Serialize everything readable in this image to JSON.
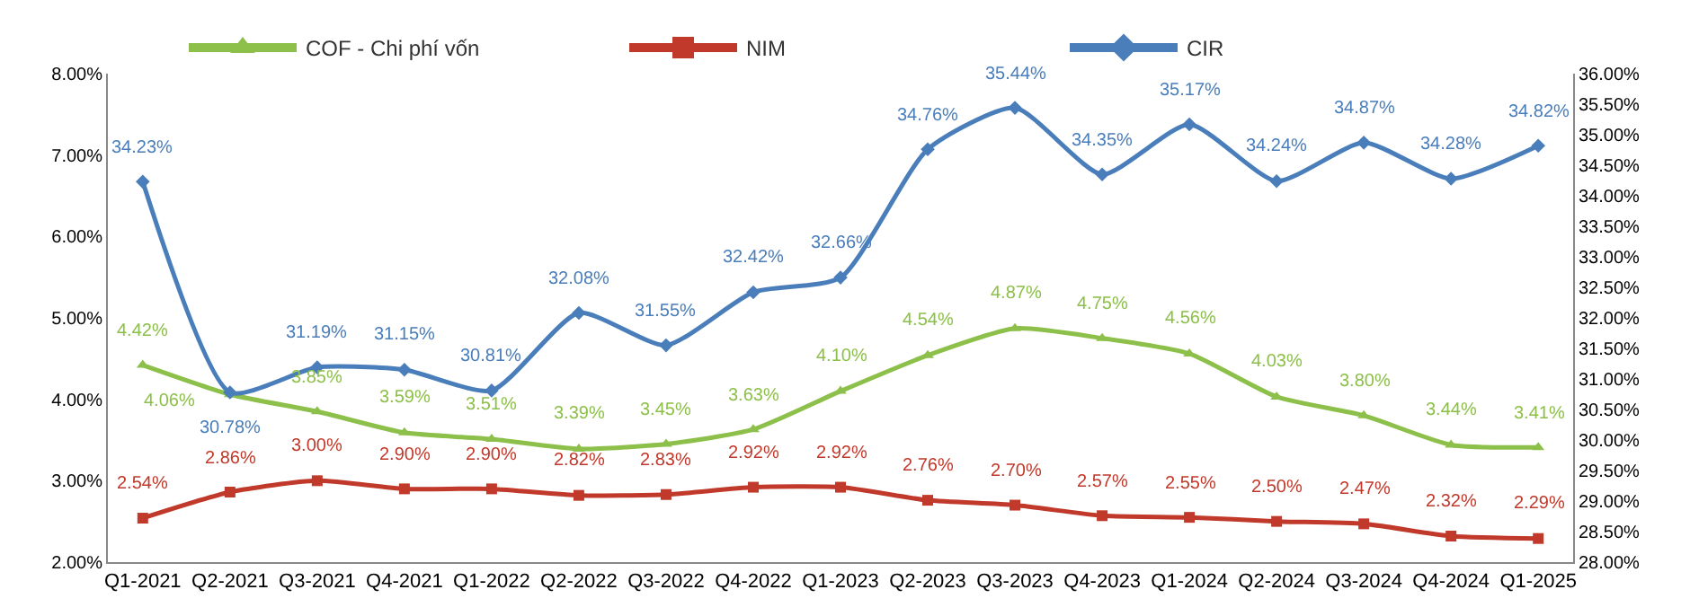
{
  "chart_data": {
    "type": "line",
    "categories": [
      "Q1-2021",
      "Q2-2021",
      "Q3-2021",
      "Q4-2021",
      "Q1-2022",
      "Q2-2022",
      "Q3-2022",
      "Q4-2022",
      "Q1-2023",
      "Q2-2023",
      "Q3-2023",
      "Q4-2023",
      "Q1-2024",
      "Q2-2024",
      "Q3-2024",
      "Q4-2024",
      "Q1-2025"
    ],
    "series": [
      {
        "name": "COF - Chi phí vốn",
        "color": "#8dc04a",
        "marker": "triangle",
        "values": [
          4.42,
          4.06,
          3.85,
          3.59,
          3.51,
          3.39,
          3.45,
          3.63,
          4.1,
          4.54,
          4.87,
          4.75,
          4.56,
          4.03,
          3.8,
          3.44,
          3.41
        ],
        "value_labels": [
          "4.42%",
          "4.06%",
          "3.85%",
          "3.59%",
          "3.51%",
          "3.39%",
          "3.45%",
          "3.63%",
          "4.10%",
          "4.54%",
          "4.87%",
          "4.75%",
          "4.56%",
          "4.03%",
          "3.80%",
          "3.44%",
          "3.41%"
        ]
      },
      {
        "name": "NIM",
        "color": "#c0392b",
        "marker": "square",
        "values": [
          2.54,
          2.86,
          3.0,
          2.9,
          2.9,
          2.82,
          2.83,
          2.92,
          2.92,
          2.76,
          2.7,
          2.57,
          2.55,
          2.5,
          2.47,
          2.32,
          2.29
        ],
        "value_labels": [
          "2.54%",
          "2.86%",
          "3.00%",
          "2.90%",
          "2.90%",
          "2.82%",
          "2.83%",
          "2.92%",
          "2.92%",
          "2.76%",
          "2.70%",
          "2.57%",
          "2.55%",
          "2.50%",
          "2.47%",
          "2.32%",
          "2.29%"
        ]
      },
      {
        "name": "CIR",
        "color": "#4a7ebb",
        "marker": "diamond",
        "axis": "y2",
        "values": [
          34.23,
          30.78,
          31.19,
          31.15,
          30.81,
          32.08,
          31.55,
          32.42,
          32.66,
          34.76,
          35.44,
          34.35,
          35.17,
          34.24,
          34.87,
          34.28,
          34.82
        ],
        "value_labels": [
          "34.23%",
          "30.78%",
          "31.19%",
          "31.15%",
          "30.81%",
          "32.08%",
          "31.55%",
          "32.42%",
          "32.66%",
          "34.76%",
          "35.44%",
          "34.35%",
          "35.17%",
          "34.24%",
          "34.87%",
          "34.28%",
          "34.82%"
        ]
      }
    ],
    "ylim": [
      2,
      8
    ],
    "yticks": [
      {
        "value": 2,
        "label": "2.00%"
      },
      {
        "value": 3,
        "label": "3.00%"
      },
      {
        "value": 4,
        "label": "4.00%"
      },
      {
        "value": 5,
        "label": "5.00%"
      },
      {
        "value": 6,
        "label": "6.00%"
      },
      {
        "value": 7,
        "label": "7.00%"
      },
      {
        "value": 8,
        "label": "8.00%"
      }
    ],
    "y2lim": [
      28,
      36
    ],
    "y2ticks": [
      {
        "value": 28,
        "label": "28.00%"
      },
      {
        "value": 28.5,
        "label": "28.50%"
      },
      {
        "value": 29,
        "label": "29.00%"
      },
      {
        "value": 29.5,
        "label": "29.50%"
      },
      {
        "value": 30,
        "label": "30.00%"
      },
      {
        "value": 30.5,
        "label": "30.50%"
      },
      {
        "value": 31,
        "label": "31.00%"
      },
      {
        "value": 31.5,
        "label": "31.50%"
      },
      {
        "value": 32,
        "label": "32.00%"
      },
      {
        "value": 32.5,
        "label": "32.50%"
      },
      {
        "value": 33,
        "label": "33.00%"
      },
      {
        "value": 33.5,
        "label": "33.50%"
      },
      {
        "value": 34,
        "label": "34.00%"
      },
      {
        "value": 34.5,
        "label": "34.50%"
      },
      {
        "value": 35,
        "label": "35.00%"
      },
      {
        "value": 35.5,
        "label": "35.50%"
      },
      {
        "value": 36,
        "label": "36.00%"
      }
    ],
    "legend": "top",
    "line_style": "solid"
  }
}
